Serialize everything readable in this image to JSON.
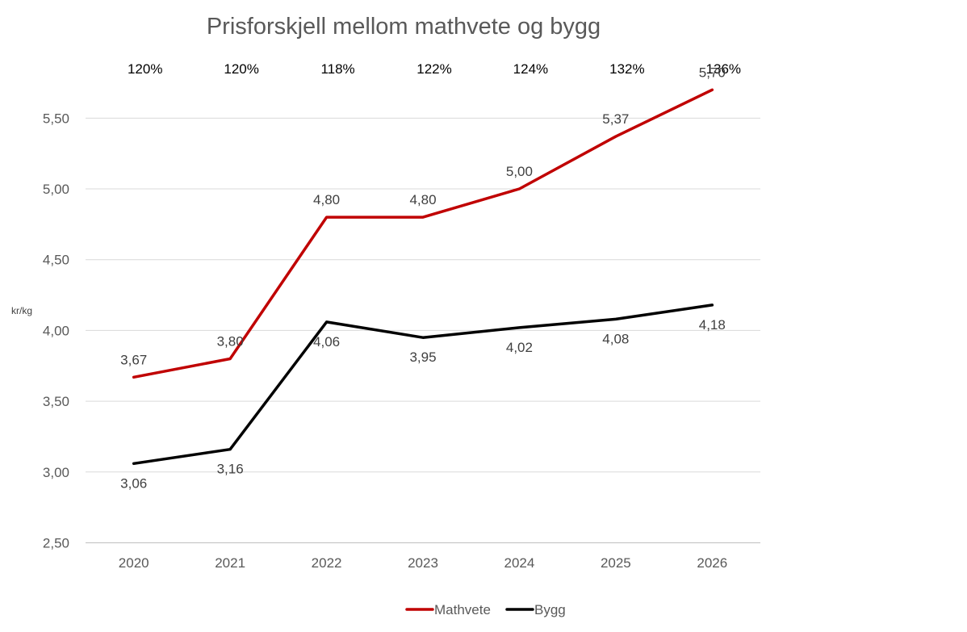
{
  "chart_data": {
    "type": "line",
    "title": "Prisforskjell mellom mathvete og bygg",
    "ylabel": "kr/kg",
    "xlabel": "",
    "categories": [
      "2020",
      "2021",
      "2022",
      "2023",
      "2024",
      "2025",
      "2026"
    ],
    "ylim": [
      2.5,
      5.75
    ],
    "yticks": [
      2.5,
      3.0,
      3.5,
      4.0,
      4.5,
      5.0,
      5.5
    ],
    "ytick_labels": [
      "2,50",
      "3,00",
      "3,50",
      "4,00",
      "4,50",
      "5,00",
      "5,50"
    ],
    "grid": true,
    "legend_position": "bottom",
    "series": [
      {
        "name": "Mathvete",
        "color": "#c00000",
        "values": [
          3.67,
          3.8,
          4.8,
          4.8,
          5.0,
          5.37,
          5.7
        ],
        "labels": [
          "3,67",
          "3,80",
          "4,80",
          "4,80",
          "5,00",
          "5,37",
          "5,70"
        ]
      },
      {
        "name": "Bygg",
        "color": "#000000",
        "values": [
          3.06,
          3.16,
          4.06,
          3.95,
          4.02,
          4.08,
          4.18
        ],
        "labels": [
          "3,06",
          "3,16",
          "4,06",
          "3,95",
          "4,02",
          "4,08",
          "4,18"
        ]
      }
    ],
    "ratio_annotations": [
      "120%",
      "120%",
      "118%",
      "122%",
      "124%",
      "132%",
      "136%"
    ]
  }
}
